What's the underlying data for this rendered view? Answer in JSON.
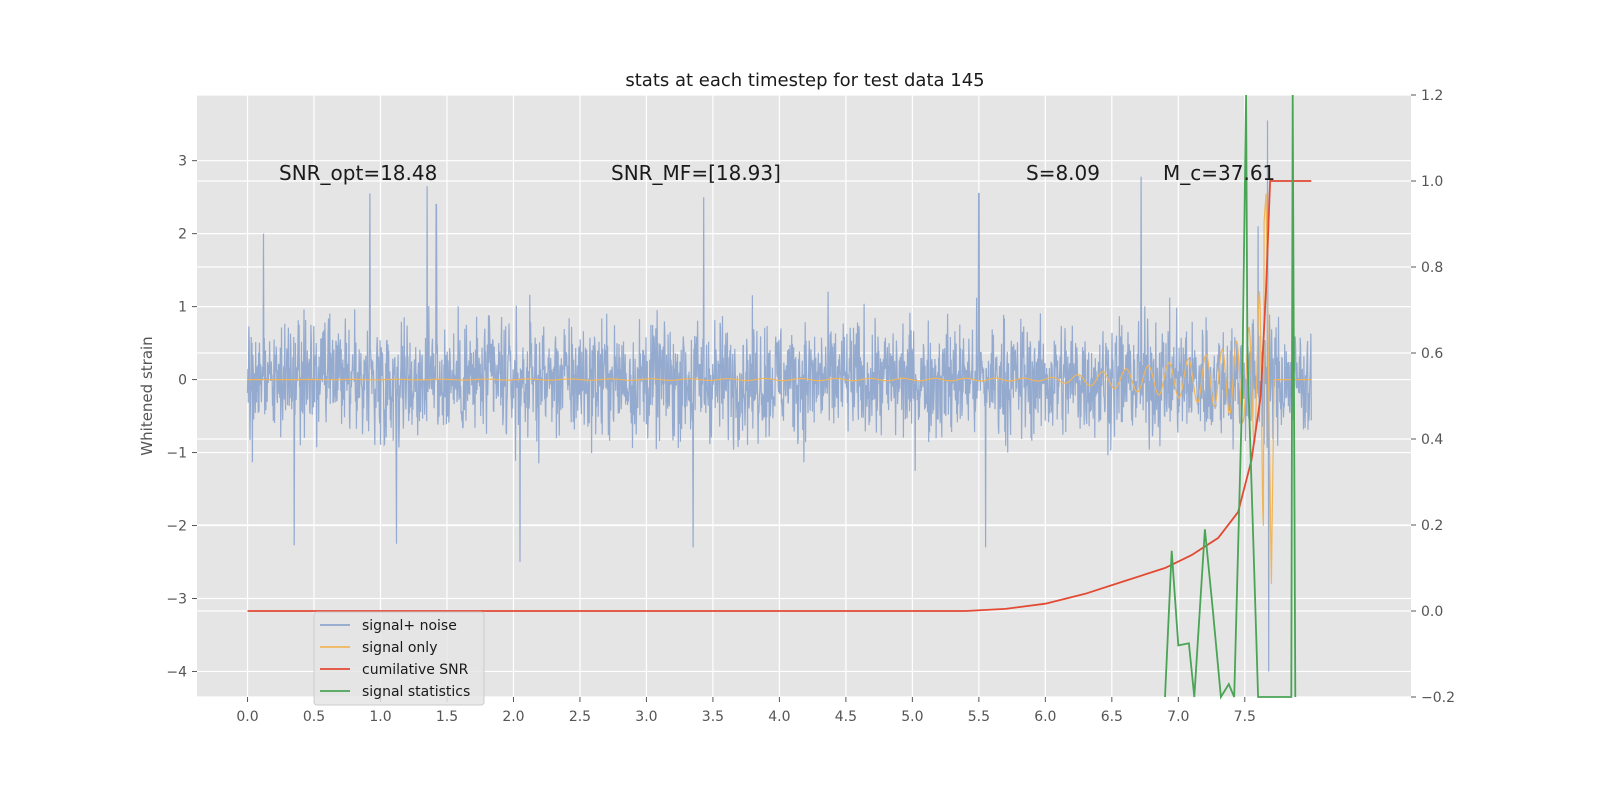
{
  "chart_data": {
    "type": "line",
    "title": "stats at each timestep for test data 145",
    "xlabel": "",
    "ylabel": "Whitened strain",
    "xlim": [
      -0.38,
      8.75
    ],
    "ylim": [
      -4.35,
      3.9
    ],
    "y2lim": [
      -0.2,
      1.2
    ],
    "grid": true,
    "x_ticks": [
      "0.0",
      "0.5",
      "1.0",
      "1.5",
      "2.0",
      "2.5",
      "3.0",
      "3.5",
      "4.0",
      "4.5",
      "5.0",
      "5.5",
      "6.0",
      "6.5",
      "7.0",
      "7.5"
    ],
    "y_ticks": [
      "3",
      "2",
      "1",
      "0",
      "−1",
      "−2",
      "−3",
      "−4"
    ],
    "y2_ticks": [
      "1.2",
      "1.0",
      "0.8",
      "0.6",
      "0.4",
      "0.2",
      "0.0",
      "−0.2"
    ],
    "annotations": [
      {
        "text": "SNR_opt=18.48"
      },
      {
        "text": "SNR_MF=[18.93]"
      },
      {
        "text": "S=8.09"
      },
      {
        "text": "M_c=37.61"
      }
    ],
    "legend": {
      "location": "lower-left",
      "entries": [
        {
          "label": "signal+ noise",
          "color": "#8fa7cd"
        },
        {
          "label": "signal only",
          "color": "#f0b55a"
        },
        {
          "label": "cumilative SNR",
          "color": "#e24a33"
        },
        {
          "label": "signal statistics",
          "color": "#4aa455"
        }
      ]
    },
    "series": [
      {
        "name": "signal+ noise",
        "axis": "left",
        "color": "#8fa7cd",
        "description": "whitened strain noise, roughly +/-1.3 envelope with spikes",
        "peaks": [
          [
            0.12,
            2.0
          ],
          [
            0.92,
            2.55
          ],
          [
            1.35,
            2.65
          ],
          [
            1.42,
            2.4
          ],
          [
            3.43,
            2.5
          ],
          [
            5.5,
            2.55
          ],
          [
            6.72,
            2.78
          ],
          [
            7.6,
            2.1
          ],
          [
            7.67,
            3.55
          ]
        ],
        "troughs": [
          [
            0.35,
            -2.27
          ],
          [
            1.12,
            -2.25
          ],
          [
            2.05,
            -2.5
          ],
          [
            3.35,
            -2.3
          ],
          [
            5.55,
            -2.3
          ],
          [
            7.68,
            -4.0
          ]
        ]
      },
      {
        "name": "signal only",
        "axis": "left",
        "color": "#f0b55a",
        "description": "chirp waveform growing toward merger",
        "envelope": [
          [
            0.0,
            0.0
          ],
          [
            6.0,
            0.02
          ],
          [
            6.5,
            0.12
          ],
          [
            7.0,
            0.25
          ],
          [
            7.3,
            0.38
          ],
          [
            7.5,
            0.6
          ],
          [
            7.6,
            1.0
          ],
          [
            7.66,
            2.55
          ],
          [
            7.7,
            -2.8
          ],
          [
            7.72,
            0.0
          ],
          [
            8.0,
            0.0
          ]
        ]
      },
      {
        "name": "cumilative SNR",
        "axis": "right",
        "color": "#e24a33",
        "points": [
          [
            0.0,
            0.0
          ],
          [
            1.0,
            0.0
          ],
          [
            2.0,
            0.0
          ],
          [
            3.0,
            0.0
          ],
          [
            4.0,
            0.0
          ],
          [
            5.0,
            0.0
          ],
          [
            5.4,
            0.0
          ],
          [
            5.7,
            0.005
          ],
          [
            6.0,
            0.017
          ],
          [
            6.3,
            0.04
          ],
          [
            6.6,
            0.07
          ],
          [
            6.9,
            0.1
          ],
          [
            7.1,
            0.13
          ],
          [
            7.3,
            0.17
          ],
          [
            7.45,
            0.23
          ],
          [
            7.55,
            0.35
          ],
          [
            7.62,
            0.5
          ],
          [
            7.66,
            0.75
          ],
          [
            7.69,
            1.0
          ],
          [
            8.0,
            1.0
          ]
        ]
      },
      {
        "name": "signal statistics",
        "axis": "right",
        "color": "#4aa455",
        "points": [
          [
            6.9,
            -0.2
          ],
          [
            6.95,
            0.14
          ],
          [
            7.0,
            -0.08
          ],
          [
            7.08,
            -0.075
          ],
          [
            7.12,
            -0.2
          ],
          [
            7.2,
            0.19
          ],
          [
            7.26,
            0.0
          ],
          [
            7.32,
            -0.2
          ],
          [
            7.38,
            -0.17
          ],
          [
            7.42,
            -0.2
          ],
          [
            7.48,
            0.5
          ],
          [
            7.51,
            1.2
          ],
          [
            7.52,
            0.6
          ],
          [
            7.56,
            0.2
          ],
          [
            7.6,
            -0.2
          ],
          [
            7.85,
            -0.2
          ],
          [
            7.86,
            1.2
          ],
          [
            7.88,
            -0.2
          ]
        ]
      }
    ]
  }
}
